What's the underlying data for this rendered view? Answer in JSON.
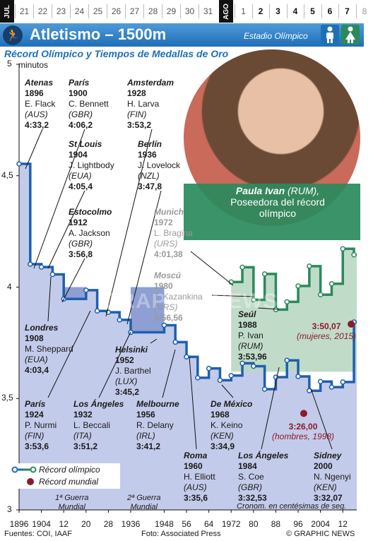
{
  "calendar": {
    "month1": "JUL",
    "month2": "AGO",
    "days_jul": [
      "21",
      "22",
      "23",
      "24",
      "25",
      "26",
      "27",
      "28",
      "29",
      "30",
      "31"
    ],
    "days_ago": [
      "1",
      "2",
      "3",
      "4",
      "5",
      "6",
      "7",
      "8"
    ]
  },
  "header": {
    "title": "Atletismo – 1500m",
    "venue": "Estadio Olímpico",
    "subtitle": "Récord Olímpico y Tiempos de Medallas de Oro",
    "colors": {
      "banner": "#2f7fc7",
      "dark": "#163f6e",
      "men": "#1f6fb8",
      "women": "#2a8a5c"
    }
  },
  "photo": {
    "name": "Paula Ivan",
    "country": " (RUM),",
    "caption": "Poseedora del récord olímpico"
  },
  "legend": {
    "olympic_record": "Récord olímpico",
    "world_record": "Récord mundial"
  },
  "notes": {
    "war1": [
      "1ª Guerra",
      "Mundial"
    ],
    "war2": [
      "2ª Guerra",
      "Mundial"
    ],
    "chrono": "Cronom. en centésimas de seg."
  },
  "footer": {
    "sources": "Fuentes: COI, IAAF",
    "photo": "Foto: Associated Press",
    "copyright": "© GRAPHIC NEWS"
  },
  "watermark": "GRAPHIC NEWS",
  "labels": [
    {
      "city": "Atenas",
      "year": "1896",
      "name": "E. Flack",
      "country": "(AUS)",
      "time": "4:33,2"
    },
    {
      "city": "París",
      "year": "1900",
      "name": "C. Bennett",
      "country": "(GBR)",
      "time": "4:06,2"
    },
    {
      "city": "St Louis",
      "year": "1904",
      "name": "J. Lightbody",
      "country": "(EUA)",
      "time": "4:05,4"
    },
    {
      "city": "Estocolmo",
      "year": "1912",
      "name": "A. Jackson",
      "country": "(GBR)",
      "time": "3:56,8"
    },
    {
      "city": "Londres",
      "year": "1908",
      "name": "M. Sheppard",
      "country": "(EUA)",
      "time": "4:03,4"
    },
    {
      "city": "París",
      "year": "1924",
      "name": "P. Nurmi",
      "country": "(FIN)",
      "time": "3:53,6"
    },
    {
      "city": "Amsterdam",
      "year": "1928",
      "name": "H. Larva",
      "country": "(FIN)",
      "time": "3:53,2"
    },
    {
      "city": "Berlín",
      "year": "1936",
      "name": "J. Lovelock",
      "country": "(NZL)",
      "time": "3:47,8"
    },
    {
      "city": "Los Ángeles",
      "year": "1932",
      "name": "L. Beccali",
      "country": "(ITA)",
      "time": "3:51,2"
    },
    {
      "city": "Helsinki",
      "year": "1952",
      "name": "J. Barthel",
      "country": "(LUX)",
      "time": "3:45,2"
    },
    {
      "city": "Melbourne",
      "year": "1956",
      "name": "R. Delany",
      "country": "(IRL)",
      "time": "3:41,2"
    },
    {
      "city": "Roma",
      "year": "1960",
      "name": "H. Elliott",
      "country": "(AUS)",
      "time": "3:35,6"
    },
    {
      "city": "Munich",
      "year": "1972",
      "name": "L. Bragina",
      "country": "(URS)",
      "time": "4:01,38"
    },
    {
      "city": "Moscú",
      "year": "1980",
      "name": "T. Kazankina",
      "country": "(URS)",
      "time": "3:56,56"
    },
    {
      "city": "Seúl",
      "year": "1988",
      "name": "P. Ivan",
      "country": "(RUM)",
      "time": "3:53,96"
    },
    {
      "city": "De México",
      "year": "1968",
      "name": "K. Keino",
      "country": "(KEN)",
      "time": "3:34,9"
    },
    {
      "city": "Los Ángeles",
      "year": "1984",
      "name": "S. Coe",
      "country": "(GBR)",
      "time": "3:32,53"
    },
    {
      "city": "Sidney",
      "year": "2000",
      "name": "N. Ngenyi",
      "country": "(KEN)",
      "time": "3:32,07"
    }
  ],
  "world_records": [
    {
      "time": "3:50,07",
      "note": "(mujeres, 2015)"
    },
    {
      "time": "3:26,00",
      "note": "(hombres, 1998)"
    }
  ],
  "chart_data": {
    "type": "line",
    "title": "Atletismo – 1500m",
    "subtitle": "Récord Olímpico y Tiempos de Medallas de Oro",
    "xlabel": "",
    "ylabel": "minutos",
    "ylim": [
      3,
      5
    ],
    "yticks": [
      "3",
      "3,5",
      "4",
      "4,5",
      "5"
    ],
    "xticks": [
      "1896",
      "1904",
      "12",
      "20",
      "28",
      "1936",
      "1948",
      "56",
      "64",
      "1972",
      "80",
      "88",
      "96",
      "2004",
      "12"
    ],
    "xtick_years": [
      1896,
      1904,
      1912,
      1920,
      1928,
      1936,
      1948,
      1956,
      1964,
      1972,
      1980,
      1988,
      1996,
      2004,
      2012
    ],
    "series": [
      {
        "name": "Hombres",
        "x": [
          1896,
          1900,
          1904,
          1908,
          1912,
          1920,
          1924,
          1928,
          1932,
          1936,
          1948,
          1952,
          1956,
          1960,
          1964,
          1968,
          1972,
          1976,
          1980,
          1984,
          1988,
          1992,
          1996,
          2000,
          2004,
          2008,
          2012,
          2016
        ],
        "y": [
          4.553,
          4.103,
          4.09,
          4.057,
          3.947,
          3.986,
          3.893,
          3.887,
          3.853,
          3.797,
          3.829,
          3.753,
          3.687,
          3.593,
          3.635,
          3.582,
          3.603,
          3.658,
          3.645,
          3.542,
          3.596,
          3.671,
          3.599,
          3.535,
          3.576,
          3.551,
          3.574,
          3.843
        ]
      },
      {
        "name": "Mujeres",
        "x": [
          1972,
          1976,
          1980,
          1984,
          1988,
          1992,
          1996,
          2000,
          2004,
          2008,
          2012,
          2016
        ],
        "y": [
          4.023,
          4.089,
          3.943,
          4.059,
          3.899,
          3.934,
          4.005,
          4.094,
          3.966,
          4.015,
          4.172,
          4.145
        ]
      }
    ],
    "world_records": [
      {
        "label": "mujeres",
        "year": 2015,
        "y": 3.834
      },
      {
        "label": "hombres",
        "year": 1998,
        "y": 3.433
      }
    ],
    "shading": [
      {
        "label": "1ª Guerra Mundial",
        "from": 1912,
        "to": 1920
      },
      {
        "label": "2ª Guerra Mundial",
        "from": 1936,
        "to": 1948
      }
    ]
  }
}
